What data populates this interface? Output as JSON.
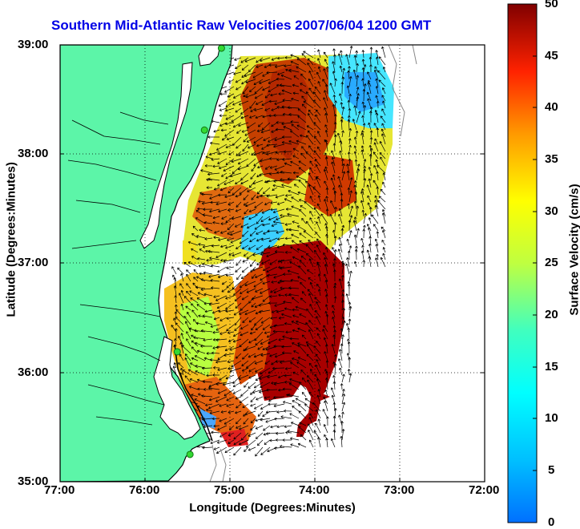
{
  "title": "Southern Mid-Atlantic Raw Velocities 2007/06/04 1200 GMT",
  "axes": {
    "xlabel": "Longitude (Degrees:Minutes)",
    "ylabel": "Latitude (Degrees:Minutes)",
    "x_ticks": [
      "77:00",
      "76:00",
      "75:00",
      "74:00",
      "73:00",
      "72:00"
    ],
    "y_ticks": [
      "39:00",
      "38:00",
      "37:00",
      "36:00",
      "35:00"
    ]
  },
  "colorbar": {
    "label": "Surface Velocity (cm/s)",
    "ticks": [
      "50",
      "45",
      "40",
      "35",
      "30",
      "25",
      "20",
      "15",
      "10",
      "5",
      "0"
    ],
    "range": [
      0,
      50
    ],
    "colormap": "jet"
  },
  "colors": {
    "land": "#5cf5a8",
    "coast": "#000000",
    "title": "#0000e6",
    "station": "#33d933"
  },
  "map": {
    "lon_range": [
      -77,
      -72
    ],
    "lat_range": [
      35,
      39
    ],
    "grid": true,
    "stations": [
      {
        "lon": -75.1,
        "lat": 38.97
      },
      {
        "lon": -75.3,
        "lat": 38.22
      },
      {
        "lon": -75.62,
        "lat": 36.19
      },
      {
        "lon": -75.47,
        "lat": 35.25
      }
    ]
  }
}
